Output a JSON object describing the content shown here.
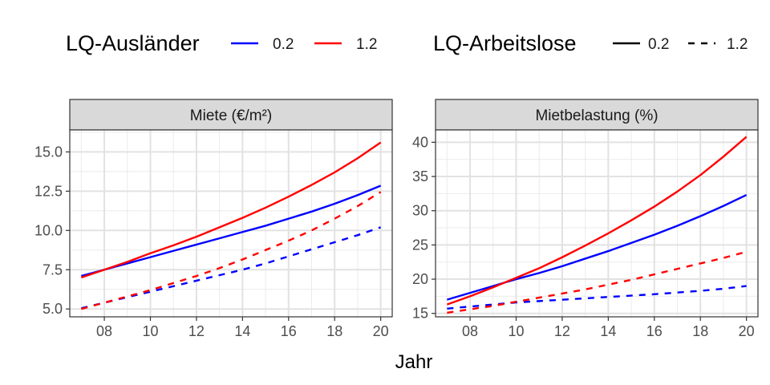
{
  "chart_data": {
    "type": "line",
    "xlabel": "Jahr",
    "x": [
      7,
      8,
      9,
      10,
      11,
      12,
      13,
      14,
      15,
      16,
      17,
      18,
      19,
      20
    ],
    "x_ticks": [
      8,
      10,
      12,
      14,
      16,
      18,
      20
    ],
    "x_tick_labels": [
      "08",
      "10",
      "12",
      "14",
      "16",
      "18",
      "20"
    ],
    "xlim": [
      6.5,
      20.5
    ],
    "legend": {
      "position": "top",
      "color_title": "LQ-Ausländer",
      "color_entries": [
        {
          "key": "0.2",
          "label": "0.2",
          "color": "#0000ff"
        },
        {
          "key": "1.2",
          "label": "1.2",
          "color": "#ff0000"
        }
      ],
      "linetype_title": "LQ-Arbeitslose",
      "linetype_entries": [
        {
          "key": "0.2",
          "label": "0.2",
          "dash": "solid"
        },
        {
          "key": "1.2",
          "label": "1.2",
          "dash": "dashed"
        }
      ]
    },
    "panels": [
      {
        "title": "Miete (€/m²)",
        "ylim": [
          4.5,
          16.4
        ],
        "y_ticks": [
          5.0,
          7.5,
          10.0,
          12.5,
          15.0
        ],
        "y_tick_labels": [
          "5.0",
          "7.5",
          "10.0",
          "12.5",
          "15.0"
        ],
        "series": [
          {
            "name": "LQ-Ausländer 0.2, LQ-Arbeitslose 0.2",
            "auslaender": "0.2",
            "arbeitslose": "0.2",
            "values": [
              7.1,
              7.5,
              7.9,
              8.3,
              8.7,
              9.1,
              9.5,
              9.9,
              10.3,
              10.75,
              11.2,
              11.7,
              12.25,
              12.85
            ]
          },
          {
            "name": "LQ-Ausländer 1.2, LQ-Arbeitslose 0.2",
            "auslaender": "1.2",
            "arbeitslose": "0.2",
            "values": [
              7.0,
              7.5,
              8.0,
              8.55,
              9.05,
              9.6,
              10.2,
              10.8,
              11.45,
              12.15,
              12.9,
              13.7,
              14.6,
              15.6
            ]
          },
          {
            "name": "LQ-Ausländer 0.2, LQ-Arbeitslose 1.2",
            "auslaender": "0.2",
            "arbeitslose": "1.2",
            "values": [
              5.05,
              5.4,
              5.75,
              6.1,
              6.45,
              6.8,
              7.15,
              7.5,
              7.9,
              8.35,
              8.8,
              9.25,
              9.7,
              10.2
            ]
          },
          {
            "name": "LQ-Ausländer 1.2, LQ-Arbeitslose 1.2",
            "auslaender": "1.2",
            "arbeitslose": "1.2",
            "values": [
              5.0,
              5.4,
              5.8,
              6.2,
              6.65,
              7.1,
              7.6,
              8.15,
              8.75,
              9.35,
              10.0,
              10.75,
              11.55,
              12.45
            ]
          }
        ]
      },
      {
        "title": "Mietbelastung (%)",
        "ylim": [
          14.5,
          41.8
        ],
        "y_ticks": [
          15,
          20,
          25,
          30,
          35,
          40
        ],
        "y_tick_labels": [
          "15",
          "20",
          "25",
          "30",
          "35",
          "40"
        ],
        "series": [
          {
            "name": "LQ-Ausländer 0.2, LQ-Arbeitslose 0.2",
            "auslaender": "0.2",
            "arbeitslose": "0.2",
            "values": [
              17.0,
              18.0,
              19.0,
              20.0,
              20.9,
              21.9,
              23.0,
              24.1,
              25.3,
              26.5,
              27.8,
              29.2,
              30.7,
              32.3
            ]
          },
          {
            "name": "LQ-Ausländer 1.2, LQ-Arbeitslose 0.2",
            "auslaender": "1.2",
            "arbeitslose": "0.2",
            "values": [
              16.3,
              17.5,
              18.8,
              20.2,
              21.6,
              23.2,
              24.9,
              26.7,
              28.6,
              30.6,
              32.8,
              35.2,
              37.9,
              40.8
            ]
          },
          {
            "name": "LQ-Ausländer 0.2, LQ-Arbeitslose 1.2",
            "auslaender": "0.2",
            "arbeitslose": "1.2",
            "values": [
              15.7,
              16.0,
              16.3,
              16.6,
              16.8,
              17.0,
              17.2,
              17.4,
              17.6,
              17.8,
              18.05,
              18.3,
              18.6,
              19.0
            ]
          },
          {
            "name": "LQ-Ausländer 1.2, LQ-Arbeitslose 1.2",
            "auslaender": "1.2",
            "arbeitslose": "1.2",
            "values": [
              15.1,
              15.6,
              16.1,
              16.7,
              17.3,
              17.9,
              18.5,
              19.2,
              19.9,
              20.7,
              21.5,
              22.3,
              23.1,
              24.0
            ]
          }
        ]
      }
    ]
  }
}
